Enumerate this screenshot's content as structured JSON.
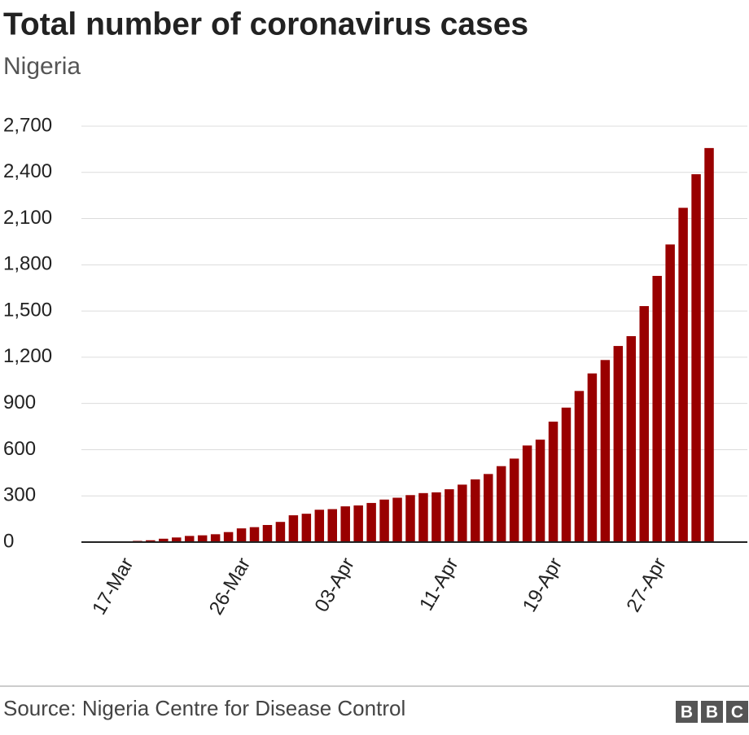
{
  "chart_data": {
    "type": "bar",
    "title": "Total number of coronavirus cases",
    "subtitle": "Nigeria",
    "categories": [
      null,
      "17-Mar",
      null,
      null,
      null,
      null,
      null,
      null,
      null,
      null,
      "26-Mar",
      null,
      null,
      null,
      null,
      null,
      null,
      null,
      "03-Apr",
      null,
      null,
      null,
      null,
      null,
      null,
      null,
      "11-Apr",
      null,
      null,
      null,
      null,
      null,
      null,
      null,
      "19-Apr",
      null,
      null,
      null,
      null,
      null,
      null,
      null,
      "27-Apr",
      null,
      null,
      null,
      null
    ],
    "values": [
      2,
      3,
      8,
      12,
      22,
      30,
      40,
      44,
      51,
      65,
      89,
      97,
      111,
      131,
      174,
      184,
      210,
      214,
      232,
      238,
      254,
      276,
      288,
      305,
      318,
      323,
      343,
      373,
      407,
      442,
      493,
      542,
      627,
      665,
      782,
      873,
      981,
      1095,
      1182,
      1273,
      1337,
      1532,
      1728,
      1932,
      2170,
      2388,
      2558
    ],
    "color": "#990000",
    "ylim": [
      0,
      2700
    ],
    "yticks": [
      0,
      {
        "value": 300,
        "label": "300"
      },
      600,
      900,
      {
        "value": 1200,
        "label": "1,200"
      },
      {
        "value": 1500,
        "label": "1,500"
      },
      {
        "value": 1800,
        "label": "1,800"
      },
      {
        "value": 2100,
        "label": "2,100"
      },
      {
        "value": 2400,
        "label": "2,400"
      },
      {
        "value": 2700,
        "label": "2,700"
      }
    ],
    "source": "Source: Nigeria Centre for Disease Control",
    "logo": [
      "B",
      "B",
      "C"
    ]
  }
}
